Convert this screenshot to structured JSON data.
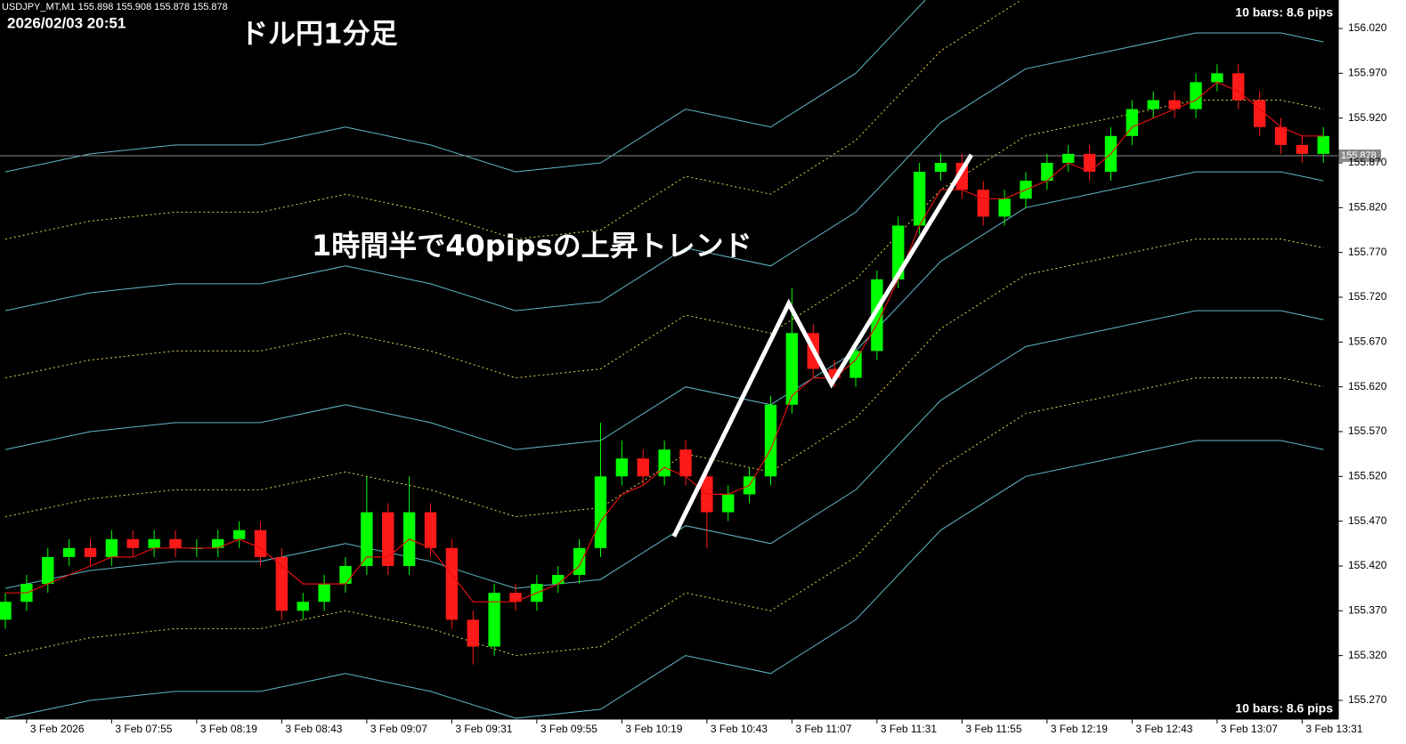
{
  "chart_data": {
    "type": "candlestick",
    "header": "USDJPY_MT,M1 155.898 155.908 155.878 155.878",
    "timestamp": "2026/02/03 20:51",
    "title": "ドル円1分足",
    "annotation": "1時間半で40pipsの上昇トレンド",
    "bar_info": [
      "10 bars: 8.6 pips",
      "10 bars: 8.6 pips"
    ],
    "categories": [
      null,
      "3 Feb 2026",
      null,
      null,
      null,
      "3 Feb 07:55",
      null,
      null,
      null,
      "3 Feb 08:19",
      null,
      null,
      null,
      "3 Feb 08:43",
      null,
      null,
      null,
      "3 Feb 09:07",
      null,
      null,
      null,
      "3 Feb 09:31",
      null,
      null,
      null,
      "3 Feb 09:55",
      null,
      null,
      null,
      "3 Feb 10:19",
      null,
      null,
      null,
      "3 Feb 10:43",
      null,
      null,
      null,
      "3 Feb 11:07",
      null,
      null,
      null,
      "3 Feb 11:31",
      null,
      null,
      null,
      "3 Feb 11:55",
      null,
      null,
      null,
      "3 Feb 12:19",
      null,
      null,
      null,
      "3 Feb 12:43",
      null,
      null,
      null,
      "3 Feb 13:07",
      null,
      null,
      null,
      "3 Feb 13:31",
      null
    ],
    "open": [
      155.36,
      155.38,
      155.4,
      155.43,
      155.44,
      155.43,
      155.45,
      155.44,
      155.45,
      155.44,
      155.44,
      155.45,
      155.46,
      155.43,
      155.37,
      155.38,
      155.4,
      155.42,
      155.48,
      155.42,
      155.48,
      155.44,
      155.36,
      155.33,
      155.39,
      155.38,
      155.4,
      155.41,
      155.44,
      155.52,
      155.54,
      155.52,
      155.55,
      155.52,
      155.48,
      155.5,
      155.52,
      155.6,
      155.68,
      155.64,
      155.63,
      155.66,
      155.74,
      155.8,
      155.86,
      155.87,
      155.84,
      155.81,
      155.83,
      155.85,
      155.87,
      155.88,
      155.86,
      155.9,
      155.93,
      155.94,
      155.93,
      155.96,
      155.97,
      155.94,
      155.91,
      155.89,
      155.88
    ],
    "high": [
      155.39,
      155.41,
      155.44,
      155.45,
      155.45,
      155.46,
      155.46,
      155.46,
      155.46,
      155.45,
      155.46,
      155.47,
      155.47,
      155.44,
      155.39,
      155.41,
      155.43,
      155.52,
      155.49,
      155.52,
      155.49,
      155.45,
      155.37,
      155.4,
      155.4,
      155.41,
      155.42,
      155.45,
      155.58,
      155.56,
      155.55,
      155.56,
      155.56,
      155.53,
      155.51,
      155.53,
      155.61,
      155.73,
      155.69,
      155.65,
      155.67,
      155.75,
      155.81,
      155.87,
      155.88,
      155.88,
      155.85,
      155.84,
      155.86,
      155.88,
      155.89,
      155.89,
      155.91,
      155.94,
      155.95,
      155.95,
      155.97,
      155.98,
      155.98,
      155.95,
      155.92,
      155.9,
      155.91
    ],
    "low": [
      155.35,
      155.37,
      155.39,
      155.42,
      155.42,
      155.42,
      155.43,
      155.43,
      155.43,
      155.43,
      155.43,
      155.44,
      155.42,
      155.36,
      155.36,
      155.37,
      155.39,
      155.41,
      155.41,
      155.41,
      155.43,
      155.35,
      155.31,
      155.32,
      155.37,
      155.37,
      155.39,
      155.4,
      155.43,
      155.51,
      155.51,
      155.51,
      155.51,
      155.44,
      155.47,
      155.49,
      155.51,
      155.59,
      155.63,
      155.62,
      155.62,
      155.65,
      155.73,
      155.79,
      155.85,
      155.83,
      155.8,
      155.8,
      155.82,
      155.84,
      155.86,
      155.85,
      155.85,
      155.89,
      155.92,
      155.92,
      155.92,
      155.95,
      155.93,
      155.9,
      155.88,
      155.87,
      155.87
    ],
    "close": [
      155.38,
      155.4,
      155.43,
      155.44,
      155.43,
      155.45,
      155.44,
      155.45,
      155.44,
      155.44,
      155.45,
      155.46,
      155.43,
      155.37,
      155.38,
      155.4,
      155.42,
      155.48,
      155.42,
      155.48,
      155.44,
      155.36,
      155.33,
      155.39,
      155.38,
      155.4,
      155.41,
      155.44,
      155.52,
      155.54,
      155.52,
      155.55,
      155.52,
      155.48,
      155.5,
      155.52,
      155.6,
      155.68,
      155.64,
      155.63,
      155.66,
      155.74,
      155.8,
      155.86,
      155.87,
      155.84,
      155.81,
      155.83,
      155.85,
      155.87,
      155.88,
      155.86,
      155.9,
      155.93,
      155.94,
      155.93,
      155.96,
      155.97,
      155.94,
      155.91,
      155.89,
      155.88,
      155.9
    ],
    "up_color": "#00ff00",
    "down_color": "#ff1a1a",
    "ma": {
      "color": "#e01010",
      "values": [
        155.39,
        155.39,
        155.4,
        155.41,
        155.42,
        155.43,
        155.43,
        155.44,
        155.44,
        155.44,
        155.44,
        155.45,
        155.44,
        155.42,
        155.4,
        155.4,
        155.4,
        155.43,
        155.43,
        155.45,
        155.44,
        155.41,
        155.38,
        155.38,
        155.38,
        155.39,
        155.4,
        155.42,
        155.47,
        155.5,
        155.51,
        155.53,
        155.52,
        155.5,
        155.5,
        155.51,
        155.55,
        155.61,
        155.63,
        155.63,
        155.65,
        155.69,
        155.74,
        155.8,
        155.84,
        155.84,
        155.83,
        155.83,
        155.84,
        155.85,
        155.87,
        155.86,
        155.88,
        155.91,
        155.92,
        155.93,
        155.94,
        155.96,
        155.95,
        155.93,
        155.91,
        155.9,
        155.9
      ]
    },
    "bands": [
      {
        "color": "#5fb8c8",
        "dashed": false,
        "x": [
          0,
          4,
          8,
          12,
          16,
          20,
          24,
          28,
          32,
          36,
          40,
          44,
          48,
          52,
          56,
          60,
          62
        ],
        "values": [
          155.86,
          155.88,
          155.89,
          155.89,
          155.91,
          155.89,
          155.86,
          155.87,
          155.93,
          155.91,
          155.97,
          156.07,
          156.13,
          156.15,
          156.17,
          156.17,
          156.16
        ]
      },
      {
        "color": "#e8d44d",
        "dashed": true,
        "x": [
          0,
          4,
          8,
          12,
          16,
          20,
          24,
          28,
          32,
          36,
          40,
          44,
          48,
          52,
          56,
          60,
          62
        ],
        "values": [
          155.785,
          155.805,
          155.815,
          155.815,
          155.835,
          155.815,
          155.785,
          155.795,
          155.855,
          155.835,
          155.895,
          155.995,
          156.055,
          156.075,
          156.095,
          156.095,
          156.085
        ]
      },
      {
        "color": "#5fb8c8",
        "dashed": false,
        "x": [
          0,
          4,
          8,
          12,
          16,
          20,
          24,
          28,
          32,
          36,
          40,
          44,
          48,
          52,
          56,
          60,
          62
        ],
        "values": [
          155.705,
          155.725,
          155.735,
          155.735,
          155.755,
          155.735,
          155.705,
          155.715,
          155.775,
          155.755,
          155.815,
          155.915,
          155.975,
          155.995,
          156.015,
          156.015,
          156.005
        ]
      },
      {
        "color": "#e8d44d",
        "dashed": true,
        "x": [
          0,
          4,
          8,
          12,
          16,
          20,
          24,
          28,
          32,
          36,
          40,
          44,
          48,
          52,
          56,
          60,
          62
        ],
        "values": [
          155.63,
          155.65,
          155.66,
          155.66,
          155.68,
          155.66,
          155.63,
          155.64,
          155.7,
          155.68,
          155.74,
          155.84,
          155.9,
          155.92,
          155.94,
          155.94,
          155.93
        ]
      },
      {
        "color": "#5fb8c8",
        "dashed": false,
        "x": [
          0,
          4,
          8,
          12,
          16,
          20,
          24,
          28,
          32,
          36,
          40,
          44,
          48,
          52,
          56,
          60,
          62
        ],
        "values": [
          155.55,
          155.57,
          155.58,
          155.58,
          155.6,
          155.58,
          155.55,
          155.56,
          155.62,
          155.6,
          155.66,
          155.76,
          155.82,
          155.84,
          155.86,
          155.86,
          155.85
        ]
      },
      {
        "color": "#e8d44d",
        "dashed": true,
        "x": [
          0,
          4,
          8,
          12,
          16,
          20,
          24,
          28,
          32,
          36,
          40,
          44,
          48,
          52,
          56,
          60,
          62
        ],
        "values": [
          155.475,
          155.495,
          155.505,
          155.505,
          155.525,
          155.505,
          155.475,
          155.485,
          155.545,
          155.525,
          155.585,
          155.685,
          155.745,
          155.765,
          155.785,
          155.785,
          155.775
        ]
      },
      {
        "color": "#5fb8c8",
        "dashed": false,
        "x": [
          0,
          4,
          8,
          12,
          16,
          20,
          24,
          28,
          32,
          36,
          40,
          44,
          48,
          52,
          56,
          60,
          62
        ],
        "values": [
          155.395,
          155.415,
          155.425,
          155.425,
          155.445,
          155.425,
          155.395,
          155.405,
          155.465,
          155.445,
          155.505,
          155.605,
          155.665,
          155.685,
          155.705,
          155.705,
          155.695
        ]
      },
      {
        "color": "#e8d44d",
        "dashed": true,
        "x": [
          0,
          4,
          8,
          12,
          16,
          20,
          24,
          28,
          32,
          36,
          40,
          44,
          48,
          52,
          56,
          60,
          62
        ],
        "values": [
          155.32,
          155.34,
          155.35,
          155.35,
          155.37,
          155.35,
          155.32,
          155.33,
          155.39,
          155.37,
          155.43,
          155.53,
          155.59,
          155.61,
          155.63,
          155.63,
          155.62
        ]
      },
      {
        "color": "#5fb8c8",
        "dashed": false,
        "x": [
          0,
          4,
          8,
          12,
          16,
          20,
          24,
          28,
          32,
          36,
          40,
          44,
          48,
          52,
          56,
          60,
          62
        ],
        "values": [
          155.25,
          155.27,
          155.28,
          155.28,
          155.3,
          155.28,
          155.25,
          155.26,
          155.32,
          155.3,
          155.36,
          155.46,
          155.52,
          155.54,
          155.56,
          155.56,
          155.55
        ]
      }
    ],
    "zigzag": {
      "color": "#ffffff",
      "x": [
        31.45,
        36.85,
        38.86,
        45.44
      ],
      "values": [
        155.453,
        155.713,
        155.623,
        155.879
      ]
    },
    "price_line": 155.878,
    "ylim": [
      155.2491,
      156.0518
    ],
    "yticks": [
      {
        "value": 156.02,
        "label": "156.020"
      },
      {
        "value": 155.97,
        "label": "155.970"
      },
      {
        "value": 155.92,
        "label": "155.920"
      },
      {
        "value": 155.87,
        "label": "155.870"
      },
      {
        "value": 155.82,
        "label": "155.820"
      },
      {
        "value": 155.77,
        "label": "155.770"
      },
      {
        "value": 155.72,
        "label": "155.720"
      },
      {
        "value": 155.67,
        "label": "155.670"
      },
      {
        "value": 155.62,
        "label": "155.620"
      },
      {
        "value": 155.57,
        "label": "155.570"
      },
      {
        "value": 155.52,
        "label": "155.520"
      },
      {
        "value": 155.47,
        "label": "155.470"
      },
      {
        "value": 155.42,
        "label": "155.420"
      },
      {
        "value": 155.37,
        "label": "155.370"
      },
      {
        "value": 155.32,
        "label": "155.320"
      },
      {
        "value": 155.27,
        "label": "155.270"
      }
    ]
  }
}
